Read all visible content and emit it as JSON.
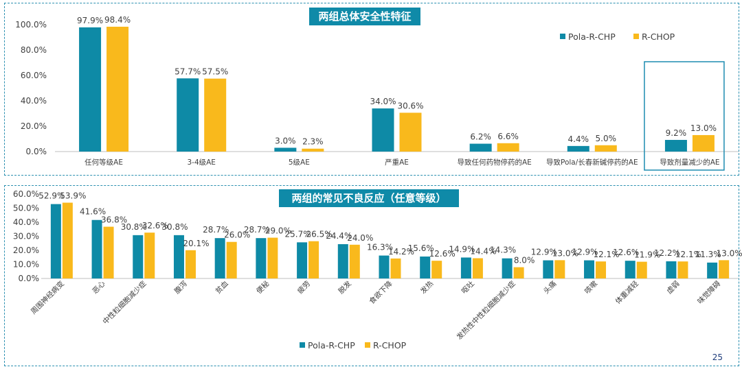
{
  "colors": {
    "pola": "#0e8aa6",
    "rchop": "#f9b91c",
    "accent": "#0f8aa8"
  },
  "page_number": "25",
  "chart_data": [
    {
      "type": "bar",
      "title": "两组总体安全性特征",
      "ylim": [
        0,
        100
      ],
      "yticks": [
        "0.0%",
        "20.0%",
        "40.0%",
        "60.0%",
        "80.0%",
        "100.0%"
      ],
      "categories": [
        "任何等级AE",
        "3-4级AE",
        "5级AE",
        "严重AE",
        "导致任何药物停药的AE",
        "导致Pola/长春新碱停药的AE",
        "导致剂量减少的AE"
      ],
      "series": [
        {
          "name": "Pola-R-CHP",
          "values": [
            97.9,
            57.7,
            3.0,
            34.0,
            6.2,
            4.4,
            9.2
          ],
          "labels": [
            "97.9%",
            "57.7%",
            "3.0%",
            "34.0%",
            "6.2%",
            "4.4%",
            "9.2%"
          ]
        },
        {
          "name": "R-CHOP",
          "values": [
            98.4,
            57.5,
            2.3,
            30.6,
            6.6,
            5.0,
            13.0
          ],
          "labels": [
            "98.4%",
            "57.5%",
            "2.3%",
            "30.6%",
            "6.6%",
            "5.0%",
            "13.0%"
          ]
        }
      ],
      "highlighted_category": "导致剂量减少的AE",
      "legend": "top-right"
    },
    {
      "type": "bar",
      "title": "两组的常见不良反应（任意等级）",
      "ylim": [
        0,
        60
      ],
      "yticks": [
        "0.0%",
        "10.0%",
        "20.0%",
        "30.0%",
        "40.0%",
        "50.0%",
        "60.0%"
      ],
      "categories": [
        "周围神经病变",
        "恶心",
        "中性粒细胞减少症",
        "腹泻",
        "贫血",
        "便秘",
        "疲劳",
        "脱发",
        "食欲下降",
        "发热",
        "呕吐",
        "发热性中性粒细胞减少症",
        "头痛",
        "咳嗽",
        "体重减轻",
        "虚弱",
        "味觉障碍"
      ],
      "series": [
        {
          "name": "Pola-R-CHP",
          "values": [
            52.9,
            41.6,
            30.8,
            30.8,
            28.7,
            28.7,
            25.7,
            24.4,
            16.3,
            15.6,
            14.9,
            14.3,
            12.9,
            12.9,
            12.6,
            12.2,
            11.3
          ],
          "labels": [
            "52.9%",
            "41.6%",
            "30.8%",
            "30.8%",
            "28.7%",
            "28.7%",
            "25.7%",
            "24.4%",
            "16.3%",
            "15.6%",
            "14.9%",
            "14.3%",
            "12.9%",
            "12.9%",
            "12.6%",
            "12.2%",
            "11.3%"
          ]
        },
        {
          "name": "R-CHOP",
          "values": [
            53.9,
            36.8,
            32.6,
            20.1,
            26.0,
            29.0,
            26.5,
            24.0,
            14.2,
            12.6,
            14.4,
            8.0,
            13.0,
            12.1,
            11.9,
            12.1,
            13.0
          ],
          "labels": [
            "53.9%",
            "36.8%",
            "32.6%",
            "20.1%",
            "26.0%",
            "29.0%",
            "26.5%",
            "24.0%",
            "14.2%",
            "12.6%",
            "14.4%",
            "8.0%",
            "13.0%",
            "12.1%",
            "11.9%",
            "12.1%",
            "13.0%"
          ]
        }
      ],
      "legend": "bottom-left"
    }
  ]
}
